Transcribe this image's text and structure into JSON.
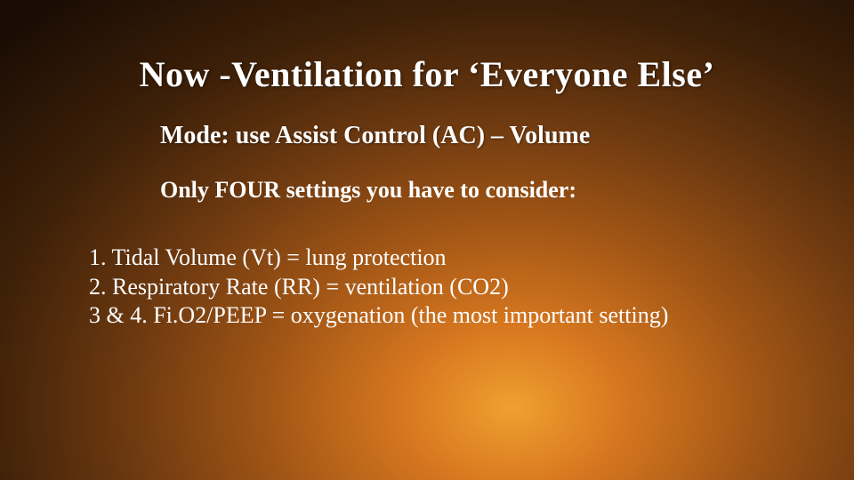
{
  "slide": {
    "title": "Now -Ventilation for ‘Everyone Else’",
    "subtitle": "Mode: use Assist Control (AC) – Volume",
    "intro": "Only FOUR settings you have to consider:",
    "items": [
      "1. Tidal Volume (Vt) = lung protection",
      "2. Respiratory Rate (RR) = ventilation (CO2)",
      "3 & 4. Fi.O2/PEEP = oxygenation (the most important setting)"
    ]
  },
  "style": {
    "background_gradient": {
      "type": "radial",
      "center": "60% 85%",
      "stops": [
        "#f0a030",
        "#d87820",
        "#a05515",
        "#6b3810",
        "#3d2008",
        "#1a0c04"
      ]
    },
    "text_color": "#ffffff",
    "title_fontsize": 40,
    "subtitle_fontsize": 28,
    "intro_fontsize": 26,
    "list_fontsize": 26,
    "font_family": "Georgia, Times New Roman, serif"
  }
}
